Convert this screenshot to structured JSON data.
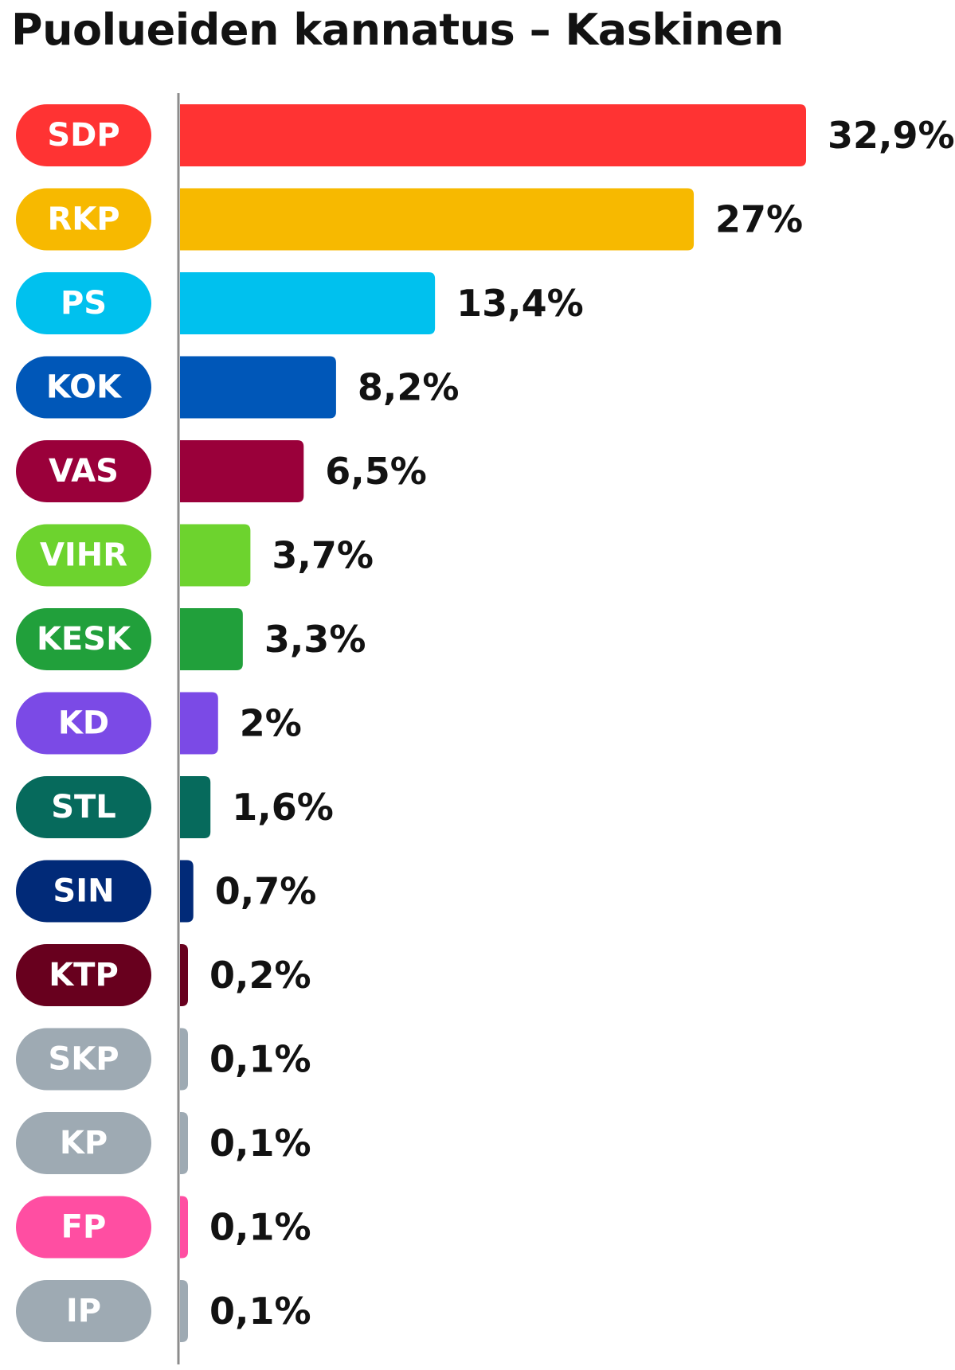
{
  "chart_data": {
    "type": "bar",
    "orientation": "horizontal",
    "title": "Puolueiden kannatus – Kaskinen",
    "xlabel": "",
    "ylabel": "",
    "grid": false,
    "legend": "none",
    "xlim": [
      0,
      32.9
    ],
    "categories": [
      "SDP",
      "RKP",
      "PS",
      "KOK",
      "VAS",
      "VIHR",
      "KESK",
      "KD",
      "STL",
      "SIN",
      "KTP",
      "SKP",
      "KP",
      "FP",
      "IP"
    ],
    "values": [
      32.9,
      27,
      13.4,
      8.2,
      6.5,
      3.7,
      3.3,
      2,
      1.6,
      0.7,
      0.2,
      0.1,
      0.1,
      0.1,
      0.1
    ],
    "value_labels": [
      "32,9%",
      "27%",
      "13,4%",
      "8,2%",
      "6,5%",
      "3,7%",
      "3,3%",
      "2%",
      "1,6%",
      "0,7%",
      "0,2%",
      "0,1%",
      "0,1%",
      "0,1%",
      "0,1%"
    ],
    "colors": [
      "#ff3333",
      "#f7b900",
      "#00c1ee",
      "#0057b8",
      "#9a003a",
      "#6dd32e",
      "#21a03b",
      "#7b4ae6",
      "#066a5c",
      "#012a78",
      "#68001e",
      "#9eaab3",
      "#9eaab3",
      "#ff4ea2",
      "#9eaab3"
    ]
  }
}
